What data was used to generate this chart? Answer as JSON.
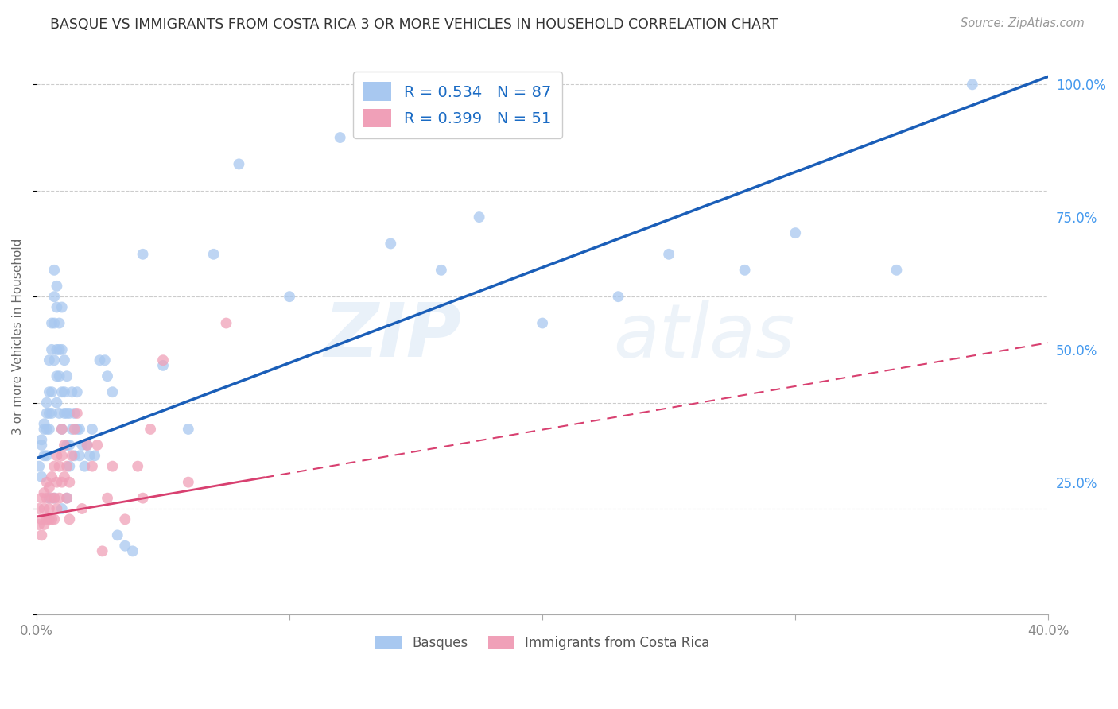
{
  "title": "BASQUE VS IMMIGRANTS FROM COSTA RICA 3 OR MORE VEHICLES IN HOUSEHOLD CORRELATION CHART",
  "source": "Source: ZipAtlas.com",
  "ylabel": "3 or more Vehicles in Household",
  "xlim": [
    0.0,
    0.4
  ],
  "ylim": [
    0.0,
    1.05
  ],
  "xtick_positions": [
    0.0,
    0.1,
    0.2,
    0.3,
    0.4
  ],
  "xticklabels": [
    "0.0%",
    "",
    "",
    "",
    "40.0%"
  ],
  "ytick_positions": [
    0.25,
    0.5,
    0.75,
    1.0
  ],
  "yticklabels": [
    "25.0%",
    "50.0%",
    "75.0%",
    "100.0%"
  ],
  "blue_R": 0.534,
  "blue_N": 87,
  "pink_R": 0.399,
  "pink_N": 51,
  "blue_color": "#a8c8f0",
  "pink_color": "#f0a0b8",
  "blue_line_color": "#1a5eb8",
  "pink_line_color": "#d84070",
  "legend_label_blue": "Basques",
  "legend_label_pink": "Immigrants from Costa Rica",
  "blue_scatter_x": [
    0.001,
    0.002,
    0.002,
    0.002,
    0.003,
    0.003,
    0.003,
    0.004,
    0.004,
    0.004,
    0.004,
    0.005,
    0.005,
    0.005,
    0.005,
    0.006,
    0.006,
    0.006,
    0.006,
    0.007,
    0.007,
    0.007,
    0.007,
    0.008,
    0.008,
    0.008,
    0.008,
    0.008,
    0.009,
    0.009,
    0.009,
    0.009,
    0.01,
    0.01,
    0.01,
    0.01,
    0.011,
    0.011,
    0.011,
    0.012,
    0.012,
    0.012,
    0.013,
    0.013,
    0.013,
    0.014,
    0.014,
    0.015,
    0.015,
    0.016,
    0.016,
    0.017,
    0.017,
    0.018,
    0.019,
    0.02,
    0.021,
    0.022,
    0.023,
    0.025,
    0.027,
    0.028,
    0.03,
    0.032,
    0.035,
    0.038,
    0.042,
    0.05,
    0.06,
    0.07,
    0.08,
    0.1,
    0.12,
    0.14,
    0.16,
    0.175,
    0.2,
    0.23,
    0.25,
    0.28,
    0.3,
    0.34,
    0.37,
    0.005,
    0.007,
    0.01,
    0.012
  ],
  "blue_scatter_y": [
    0.28,
    0.33,
    0.26,
    0.32,
    0.36,
    0.3,
    0.35,
    0.4,
    0.38,
    0.35,
    0.3,
    0.42,
    0.48,
    0.38,
    0.35,
    0.55,
    0.5,
    0.42,
    0.38,
    0.6,
    0.65,
    0.55,
    0.48,
    0.62,
    0.58,
    0.5,
    0.45,
    0.4,
    0.55,
    0.5,
    0.45,
    0.38,
    0.58,
    0.5,
    0.42,
    0.35,
    0.48,
    0.42,
    0.38,
    0.45,
    0.38,
    0.32,
    0.38,
    0.32,
    0.28,
    0.42,
    0.35,
    0.38,
    0.3,
    0.42,
    0.35,
    0.35,
    0.3,
    0.32,
    0.28,
    0.32,
    0.3,
    0.35,
    0.3,
    0.48,
    0.48,
    0.45,
    0.42,
    0.15,
    0.13,
    0.12,
    0.68,
    0.47,
    0.35,
    0.68,
    0.85,
    0.6,
    0.9,
    0.7,
    0.65,
    0.75,
    0.55,
    0.6,
    0.68,
    0.65,
    0.72,
    0.65,
    1.0,
    0.22,
    0.22,
    0.2,
    0.22
  ],
  "pink_scatter_x": [
    0.001,
    0.001,
    0.002,
    0.002,
    0.002,
    0.003,
    0.003,
    0.003,
    0.004,
    0.004,
    0.004,
    0.005,
    0.005,
    0.005,
    0.006,
    0.006,
    0.006,
    0.007,
    0.007,
    0.007,
    0.008,
    0.008,
    0.008,
    0.009,
    0.009,
    0.01,
    0.01,
    0.01,
    0.011,
    0.011,
    0.012,
    0.012,
    0.013,
    0.013,
    0.014,
    0.015,
    0.016,
    0.018,
    0.02,
    0.022,
    0.024,
    0.026,
    0.028,
    0.03,
    0.035,
    0.04,
    0.042,
    0.045,
    0.05,
    0.06,
    0.075
  ],
  "pink_scatter_y": [
    0.2,
    0.17,
    0.22,
    0.18,
    0.15,
    0.2,
    0.23,
    0.17,
    0.25,
    0.22,
    0.18,
    0.2,
    0.24,
    0.18,
    0.22,
    0.26,
    0.18,
    0.28,
    0.22,
    0.18,
    0.3,
    0.25,
    0.2,
    0.28,
    0.22,
    0.35,
    0.3,
    0.25,
    0.32,
    0.26,
    0.28,
    0.22,
    0.25,
    0.18,
    0.3,
    0.35,
    0.38,
    0.2,
    0.32,
    0.28,
    0.32,
    0.12,
    0.22,
    0.28,
    0.18,
    0.28,
    0.22,
    0.35,
    0.48,
    0.25,
    0.55
  ],
  "blue_line_intercept": 0.295,
  "blue_line_slope": 1.8,
  "pink_line_intercept": 0.185,
  "pink_line_slope": 0.82,
  "background_color": "#ffffff",
  "grid_color": "#cccccc",
  "title_color": "#333333",
  "axis_label_color": "#666666",
  "right_axis_color": "#4499ee",
  "watermark_zip_color": "#c8dcf0",
  "watermark_atlas_color": "#b0cce8"
}
